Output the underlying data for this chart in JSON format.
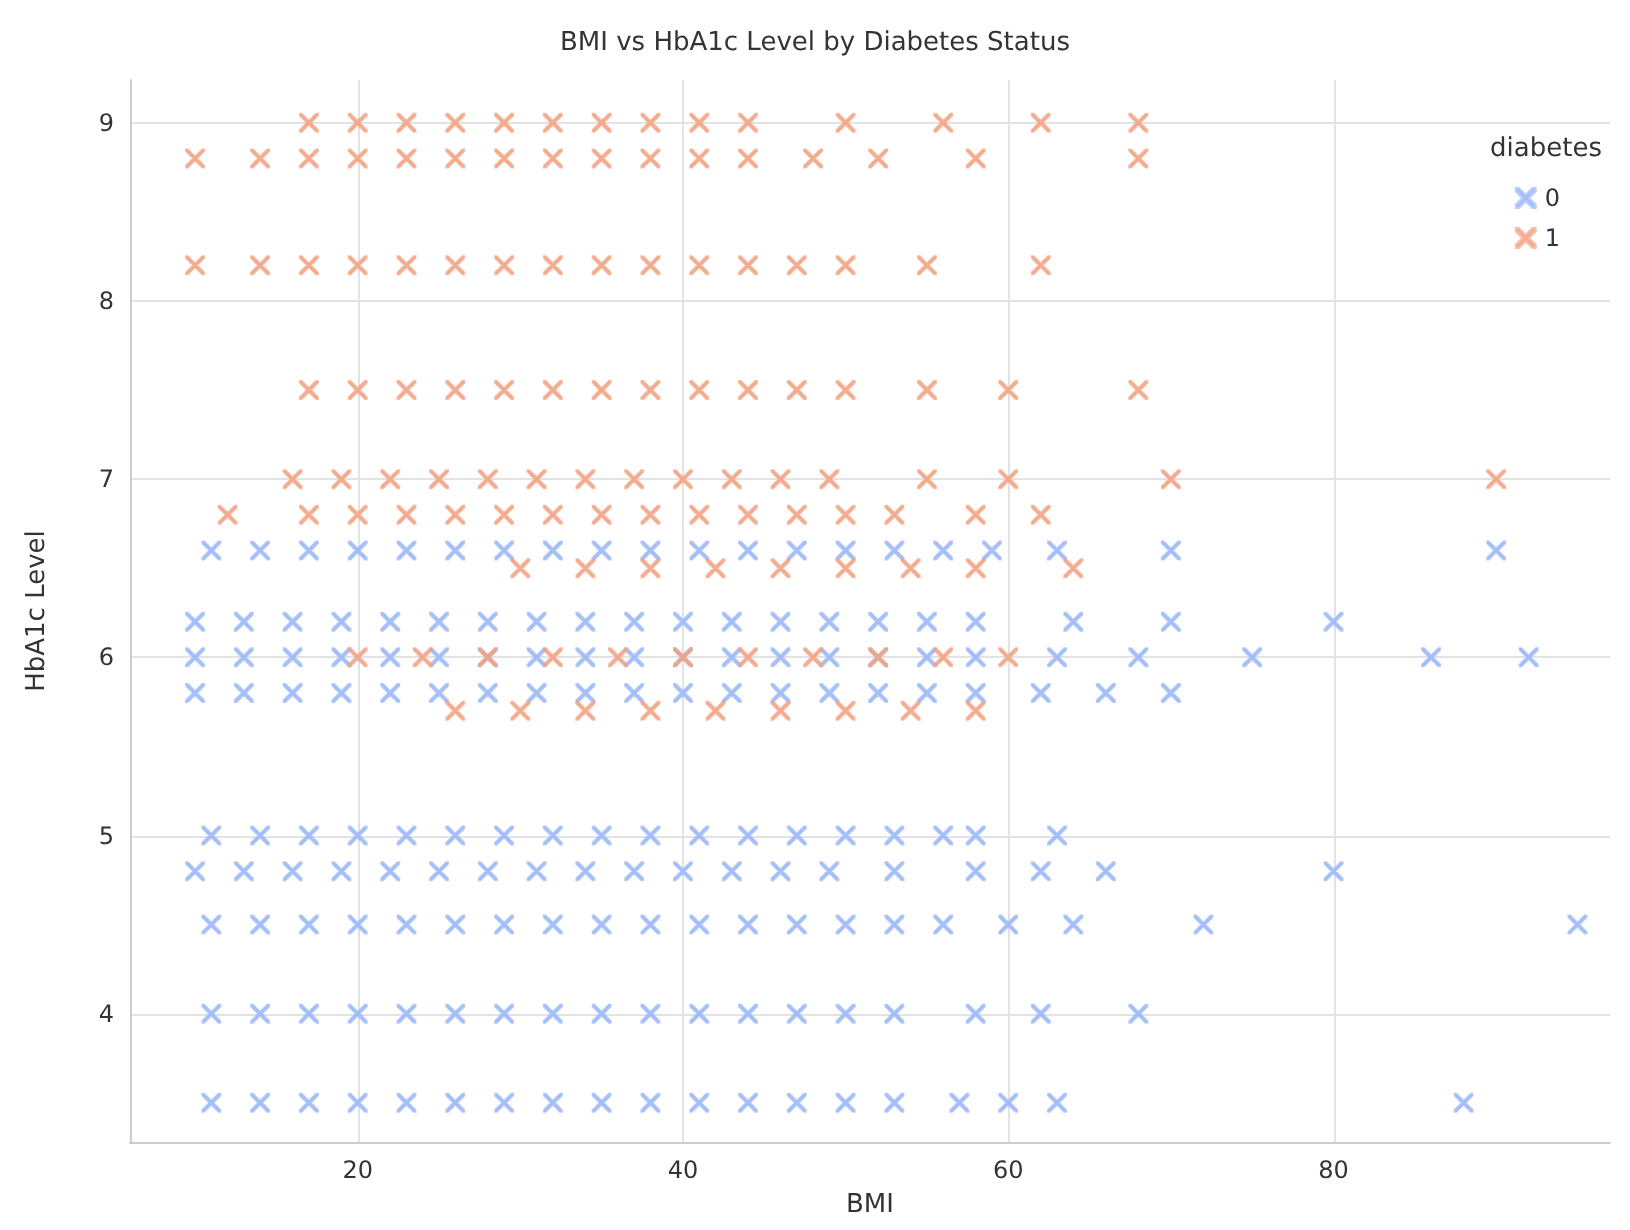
{
  "chart_data": {
    "type": "scatter",
    "title": "BMI vs HbA1c Level by Diabetes Status",
    "xlabel": "BMI",
    "ylabel": "HbA1c Level",
    "legend_title": "diabetes",
    "legend": "top right",
    "grid": true,
    "marker": "cross",
    "xlim": [
      6,
      97
    ],
    "xticks": [
      20,
      40,
      60,
      80
    ],
    "ylim": [
      3.28,
      9.24
    ],
    "yticks": [
      4,
      5,
      6,
      7,
      8,
      9
    ],
    "series": [
      {
        "name": "0",
        "color": "#9ab8f8",
        "x": [
          11,
          14,
          17,
          20,
          23,
          26,
          29,
          32,
          35,
          38,
          41,
          44,
          47,
          50,
          53,
          57,
          60,
          63,
          88,
          11,
          14,
          17,
          20,
          23,
          26,
          29,
          32,
          35,
          38,
          41,
          44,
          47,
          50,
          53,
          58,
          62,
          68,
          11,
          14,
          17,
          20,
          23,
          26,
          29,
          32,
          35,
          38,
          41,
          44,
          47,
          50,
          53,
          56,
          60,
          64,
          72,
          95,
          10,
          13,
          16,
          19,
          22,
          25,
          28,
          31,
          34,
          37,
          40,
          43,
          46,
          49,
          53,
          58,
          62,
          66,
          80,
          11,
          14,
          17,
          20,
          23,
          26,
          29,
          32,
          35,
          38,
          41,
          44,
          47,
          50,
          53,
          56,
          58,
          63,
          10,
          13,
          16,
          19,
          22,
          25,
          28,
          31,
          34,
          37,
          40,
          43,
          46,
          49,
          52,
          55,
          58,
          62,
          66,
          70,
          10,
          13,
          16,
          19,
          22,
          25,
          28,
          31,
          34,
          37,
          40,
          43,
          46,
          49,
          52,
          55,
          58,
          63,
          68,
          75,
          86,
          92,
          10,
          13,
          16,
          19,
          22,
          25,
          28,
          31,
          34,
          37,
          40,
          43,
          46,
          49,
          52,
          55,
          58,
          64,
          70,
          80,
          11,
          14,
          17,
          20,
          23,
          26,
          29,
          32,
          35,
          38,
          41,
          44,
          47,
          50,
          53,
          56,
          59,
          63,
          70,
          90
        ],
        "values": [
          3.5,
          3.5,
          3.5,
          3.5,
          3.5,
          3.5,
          3.5,
          3.5,
          3.5,
          3.5,
          3.5,
          3.5,
          3.5,
          3.5,
          3.5,
          3.5,
          3.5,
          3.5,
          3.5,
          4,
          4,
          4,
          4,
          4,
          4,
          4,
          4,
          4,
          4,
          4,
          4,
          4,
          4,
          4,
          4,
          4,
          4,
          4.5,
          4.5,
          4.5,
          4.5,
          4.5,
          4.5,
          4.5,
          4.5,
          4.5,
          4.5,
          4.5,
          4.5,
          4.5,
          4.5,
          4.5,
          4.5,
          4.5,
          4.5,
          4.5,
          4.5,
          4.8,
          4.8,
          4.8,
          4.8,
          4.8,
          4.8,
          4.8,
          4.8,
          4.8,
          4.8,
          4.8,
          4.8,
          4.8,
          4.8,
          4.8,
          4.8,
          4.8,
          4.8,
          4.8,
          5,
          5,
          5,
          5,
          5,
          5,
          5,
          5,
          5,
          5,
          5,
          5,
          5,
          5,
          5,
          5,
          5,
          5,
          5.8,
          5.8,
          5.8,
          5.8,
          5.8,
          5.8,
          5.8,
          5.8,
          5.8,
          5.8,
          5.8,
          5.8,
          5.8,
          5.8,
          5.8,
          5.8,
          5.8,
          5.8,
          5.8,
          5.8,
          6,
          6,
          6,
          6,
          6,
          6,
          6,
          6,
          6,
          6,
          6,
          6,
          6,
          6,
          6,
          6,
          6,
          6,
          6,
          6,
          6,
          6,
          6.2,
          6.2,
          6.2,
          6.2,
          6.2,
          6.2,
          6.2,
          6.2,
          6.2,
          6.2,
          6.2,
          6.2,
          6.2,
          6.2,
          6.2,
          6.2,
          6.2,
          6.2,
          6.2,
          6.2,
          6.6,
          6.6,
          6.6,
          6.6,
          6.6,
          6.6,
          6.6,
          6.6,
          6.6,
          6.6,
          6.6,
          6.6,
          6.6,
          6.6,
          6.6,
          6.6,
          6.6,
          6.6,
          6.6,
          6.6
        ]
      },
      {
        "name": "1",
        "color": "#f2a383",
        "x": [
          26,
          30,
          34,
          38,
          42,
          46,
          50,
          54,
          58,
          20,
          24,
          28,
          32,
          36,
          40,
          44,
          48,
          52,
          56,
          60,
          30,
          34,
          38,
          42,
          46,
          50,
          54,
          58,
          64,
          12,
          17,
          20,
          23,
          26,
          29,
          32,
          35,
          38,
          41,
          44,
          47,
          50,
          53,
          58,
          62,
          16,
          19,
          22,
          25,
          28,
          31,
          34,
          37,
          40,
          43,
          46,
          49,
          55,
          60,
          70,
          90,
          17,
          20,
          23,
          26,
          29,
          32,
          35,
          38,
          41,
          44,
          47,
          50,
          55,
          60,
          68,
          10,
          14,
          17,
          20,
          23,
          26,
          29,
          32,
          35,
          38,
          41,
          44,
          47,
          50,
          55,
          62,
          10,
          14,
          17,
          20,
          23,
          26,
          29,
          32,
          35,
          38,
          41,
          44,
          48,
          52,
          58,
          68,
          17,
          20,
          23,
          26,
          29,
          32,
          35,
          38,
          41,
          44,
          50,
          56,
          62,
          68
        ],
        "values": [
          5.7,
          5.7,
          5.7,
          5.7,
          5.7,
          5.7,
          5.7,
          5.7,
          5.7,
          6,
          6,
          6,
          6,
          6,
          6,
          6,
          6,
          6,
          6,
          6,
          6.5,
          6.5,
          6.5,
          6.5,
          6.5,
          6.5,
          6.5,
          6.5,
          6.5,
          6.8,
          6.8,
          6.8,
          6.8,
          6.8,
          6.8,
          6.8,
          6.8,
          6.8,
          6.8,
          6.8,
          6.8,
          6.8,
          6.8,
          6.8,
          6.8,
          7,
          7,
          7,
          7,
          7,
          7,
          7,
          7,
          7,
          7,
          7,
          7,
          7,
          7,
          7,
          7,
          7.5,
          7.5,
          7.5,
          7.5,
          7.5,
          7.5,
          7.5,
          7.5,
          7.5,
          7.5,
          7.5,
          7.5,
          7.5,
          7.5,
          7.5,
          8.2,
          8.2,
          8.2,
          8.2,
          8.2,
          8.2,
          8.2,
          8.2,
          8.2,
          8.2,
          8.2,
          8.2,
          8.2,
          8.2,
          8.2,
          8.2,
          8.8,
          8.8,
          8.8,
          8.8,
          8.8,
          8.8,
          8.8,
          8.8,
          8.8,
          8.8,
          8.8,
          8.8,
          8.8,
          8.8,
          8.8,
          8.8,
          9,
          9,
          9,
          9,
          9,
          9,
          9,
          9,
          9,
          9,
          9,
          9,
          9,
          9
        ]
      }
    ]
  }
}
